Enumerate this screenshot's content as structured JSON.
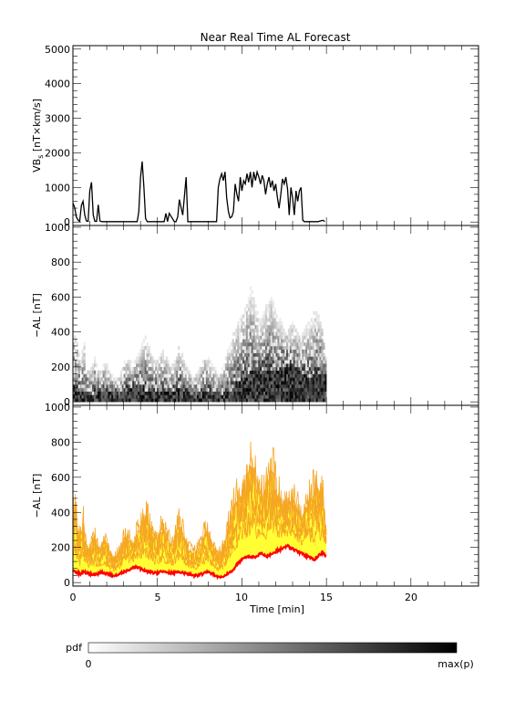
{
  "figure": {
    "title": "Near Real Time AL Forecast",
    "xlabel": "Time [min]",
    "x_ticks": [
      "0",
      "5",
      "10",
      "15",
      "20"
    ],
    "colorbar": {
      "label": "pdf",
      "min_label": "0",
      "max_label": "max(p)"
    }
  },
  "chart_data": [
    {
      "type": "line",
      "panel": "vbs",
      "ylabel": "VB",
      "ylabel_sub": "s",
      "ylabel_units": " [nT×km/s]",
      "xlim": [
        0,
        24
      ],
      "ylim": [
        -100,
        5100
      ],
      "y_ticks": [
        "0",
        "1000",
        "2000",
        "3000",
        "4000",
        "5000"
      ],
      "grid": false,
      "series": [
        {
          "color": "#000000",
          "x": [
            0.0,
            0.1,
            0.2,
            0.3,
            0.4,
            0.5,
            0.6,
            0.7,
            0.8,
            0.9,
            1.0,
            1.1,
            1.2,
            1.3,
            1.4,
            1.5,
            1.6,
            1.7,
            1.8,
            2.0,
            2.5,
            3.0,
            3.5,
            3.8,
            3.9,
            4.0,
            4.1,
            4.2,
            4.3,
            4.4,
            4.5,
            4.7,
            5.0,
            5.4,
            5.5,
            5.6,
            5.7,
            6.0,
            6.1,
            6.2,
            6.3,
            6.5,
            6.7,
            6.8,
            6.9,
            7.0,
            7.1,
            7.5,
            8.0,
            8.5,
            8.6,
            8.7,
            8.8,
            8.9,
            9.0,
            9.1,
            9.2,
            9.3,
            9.4,
            9.5,
            9.6,
            9.7,
            9.8,
            9.9,
            10.0,
            10.1,
            10.2,
            10.3,
            10.4,
            10.5,
            10.6,
            10.7,
            10.8,
            10.9,
            11.0,
            11.1,
            11.2,
            11.3,
            11.4,
            11.5,
            11.6,
            11.7,
            11.8,
            11.9,
            12.0,
            12.1,
            12.2,
            12.3,
            12.4,
            12.5,
            12.6,
            12.7,
            12.8,
            12.9,
            13.0,
            13.1,
            13.2,
            13.3,
            13.4,
            13.5,
            13.6,
            13.7,
            13.8,
            13.9,
            14.0,
            14.5,
            14.8,
            14.9
          ],
          "y": [
            550,
            420,
            150,
            60,
            20,
            480,
            600,
            200,
            30,
            20,
            900,
            1150,
            200,
            20,
            20,
            500,
            30,
            10,
            10,
            10,
            10,
            10,
            10,
            10,
            300,
            1300,
            1750,
            1000,
            100,
            10,
            10,
            10,
            10,
            10,
            250,
            10,
            250,
            10,
            10,
            150,
            650,
            200,
            1300,
            10,
            10,
            10,
            10,
            10,
            10,
            10,
            1000,
            1250,
            1400,
            1200,
            1450,
            700,
            300,
            120,
            150,
            300,
            1100,
            800,
            600,
            1300,
            900,
            1200,
            1100,
            1400,
            1150,
            1450,
            1000,
            1450,
            1200,
            1450,
            1300,
            1100,
            1350,
            1200,
            800,
            1100,
            1300,
            1000,
            1200,
            900,
            1100,
            700,
            400,
            800,
            1250,
            1100,
            1300,
            950,
            200,
            1000,
            700,
            200,
            900,
            600,
            900,
            1000,
            50,
            10,
            10,
            10,
            10,
            10,
            50,
            10
          ]
        }
      ]
    },
    {
      "type": "heatmap",
      "panel": "pdf",
      "ylabel": "−AL [nT]",
      "xlim": [
        0,
        24
      ],
      "ylim": [
        -20,
        1010
      ],
      "y_ticks": [
        "0",
        "200",
        "400",
        "600",
        "800",
        "1000"
      ],
      "grid": false,
      "x_start": 0,
      "x_end": 15,
      "bin_height": 20,
      "median": [
        70,
        65,
        60,
        55,
        50,
        55,
        60,
        58,
        55,
        50,
        48,
        45,
        45,
        48,
        50,
        55,
        60,
        58,
        55,
        50,
        48,
        45,
        42,
        40,
        40,
        42,
        45,
        50,
        55,
        60,
        65,
        70,
        75,
        80,
        85,
        88,
        90,
        85,
        80,
        75,
        70,
        68,
        65,
        62,
        60,
        58,
        55,
        55,
        55,
        58,
        60,
        62,
        60,
        58,
        55,
        55,
        55,
        55,
        58,
        62,
        65,
        62,
        58,
        55,
        52,
        50,
        48,
        45,
        42,
        40,
        40,
        42,
        45,
        48,
        50,
        55,
        60,
        60,
        55,
        50,
        45,
        40,
        35,
        32,
        30,
        35,
        40,
        45,
        50,
        55,
        60,
        70,
        85,
        100,
        110,
        120,
        130,
        140,
        145,
        150,
        150,
        148,
        145,
        145,
        150,
        155,
        160,
        165,
        160,
        155,
        150,
        155,
        160,
        165,
        170,
        175,
        180,
        185,
        190,
        195,
        200,
        205,
        210,
        200,
        195,
        190,
        185,
        180,
        175,
        170,
        165,
        160,
        155,
        150,
        145,
        140,
        135,
        130,
        140,
        150,
        160,
        165,
        170,
        160,
        150
      ],
      "upper": [
        400,
        420,
        380,
        300,
        250,
        320,
        380,
        260,
        220,
        200,
        210,
        250,
        280,
        240,
        200,
        190,
        200,
        230,
        260,
        230,
        200,
        180,
        160,
        150,
        150,
        160,
        180,
        200,
        220,
        250,
        270,
        280,
        260,
        240,
        220,
        250,
        280,
        300,
        320,
        350,
        380,
        400,
        380,
        350,
        320,
        300,
        280,
        270,
        260,
        280,
        310,
        320,
        300,
        280,
        260,
        240,
        230,
        240,
        260,
        300,
        350,
        330,
        300,
        270,
        240,
        210,
        190,
        180,
        180,
        180,
        180,
        190,
        210,
        240,
        270,
        290,
        300,
        280,
        260,
        240,
        220,
        200,
        180,
        180,
        190,
        210,
        230,
        280,
        320,
        350,
        380,
        420,
        450,
        480,
        500,
        520,
        540,
        560,
        580,
        620,
        660,
        700,
        680,
        640,
        600,
        560,
        520,
        500,
        520,
        560,
        600,
        620,
        640,
        660,
        620,
        580,
        540,
        520,
        500,
        480,
        460,
        450,
        440,
        450,
        470,
        480,
        470,
        450,
        430,
        410,
        400,
        420,
        440,
        460,
        480,
        500,
        520,
        540,
        560,
        550,
        530,
        510,
        490,
        400,
        300
      ]
    },
    {
      "type": "area",
      "panel": "forecast",
      "ylabel": "−AL [nT]",
      "xlim": [
        0,
        24
      ],
      "ylim": [
        -20,
        1010
      ],
      "y_ticks": [
        "0",
        "200",
        "400",
        "600",
        "800",
        "1000"
      ],
      "grid": false,
      "colors": {
        "band": "#ffff33",
        "envelope": "#f5a623",
        "median": "#ff0000"
      },
      "x_start": 0,
      "x_end": 15
    }
  ]
}
